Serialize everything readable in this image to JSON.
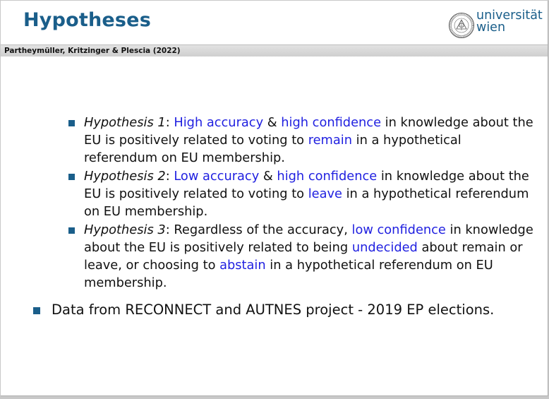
{
  "slide": {
    "title": "Hypotheses",
    "subtitle_bar": "Partheymüller, Kritzinger & Plescia (2022)"
  },
  "logo": {
    "line1": "universität",
    "line2": "wien"
  },
  "colors": {
    "accent": "#1a5e8a",
    "highlight": "#1f1fe0"
  },
  "hypotheses": [
    {
      "label": "Hypothesis 1",
      "after_label": ": ",
      "t1": "High accuracy",
      "t2": " & ",
      "t3": "high confidence",
      "t4": " in knowledge about the EU is positively related to voting to ",
      "t5": "remain",
      "t6": " in a hypothetical referendum on EU membership."
    },
    {
      "label": "Hypothesis 2",
      "after_label": ": ",
      "t1": "Low accuracy",
      "t2": " & ",
      "t3": "high confidence",
      "t4": " in knowledge about the EU is positively related to voting to ",
      "t5": "leave",
      "t6": " in a hypothetical referendum on EU membership."
    },
    {
      "label": "Hypothesis 3",
      "after_label": ": Regardless of the accuracy, ",
      "t1": "low confidence",
      "t2": " in knowledge about the EU is positively related to being ",
      "t3": "undecided",
      "t4": " about remain or leave, or choosing to ",
      "t5": "abstain",
      "t6": " in a hypothetical referendum on EU membership."
    }
  ],
  "data_note": "Data from RECONNECT and AUTNES project - 2019 EP elections."
}
